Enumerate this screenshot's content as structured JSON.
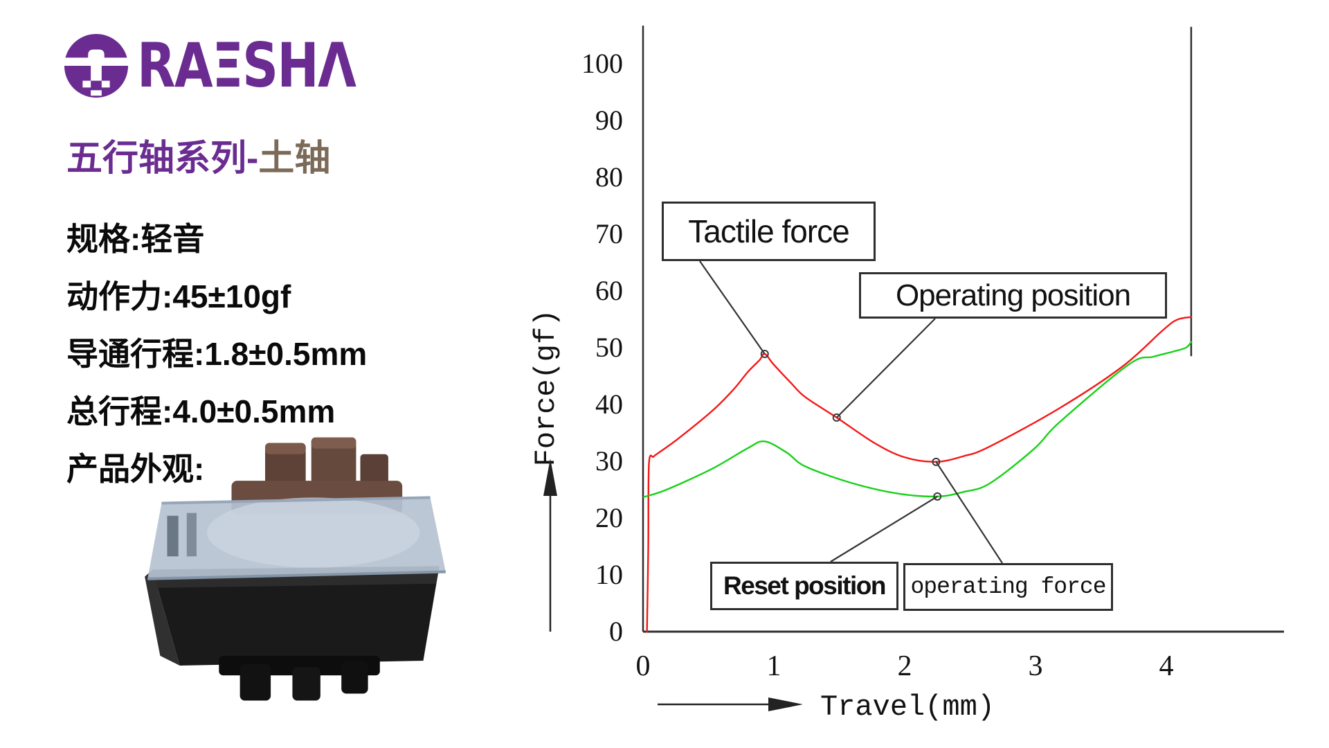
{
  "brand": {
    "logo_text": "RAESHA",
    "logo_display": "RAΞSHΛ",
    "brand_color": "#6b2c91",
    "accent_color": "#7b6a58"
  },
  "series_title": {
    "primary": "五行轴系列-",
    "accent": "土轴"
  },
  "specs": [
    "规格:轻音",
    "动作力:45±10gf",
    "导通行程:1.8±0.5mm",
    "总行程:4.0±0.5mm",
    "产品外观:"
  ],
  "chart_data": {
    "type": "line",
    "title": "",
    "xlabel": "Travel(mm)",
    "ylabel": "Force(gf)",
    "x_ticks": [
      0,
      1,
      2,
      3,
      4
    ],
    "y_ticks": [
      0,
      10,
      20,
      30,
      40,
      50,
      60,
      70,
      80,
      90,
      100
    ],
    "xlim": [
      0,
      4.9
    ],
    "ylim": [
      0,
      107
    ],
    "grid": false,
    "legend_position": "none",
    "axis_color": "#2f2f2f",
    "bottom_out_mm": 4.19,
    "bottom_out_gf_span": [
      48.5,
      106.5
    ],
    "series": [
      {
        "name": "press-force-curve",
        "color": "#f51616",
        "points": [
          [
            0.03,
            0
          ],
          [
            0.04,
            15
          ],
          [
            0.045,
            29.5
          ],
          [
            0.08,
            30.8
          ],
          [
            0.12,
            31.5
          ],
          [
            0.27,
            34.0
          ],
          [
            0.53,
            38.9
          ],
          [
            0.69,
            42.6
          ],
          [
            0.8,
            45.7
          ],
          [
            0.89,
            47.8
          ],
          [
            0.93,
            48.9
          ],
          [
            1.0,
            47.0
          ],
          [
            1.13,
            43.8
          ],
          [
            1.24,
            41.3
          ],
          [
            1.48,
            37.7
          ],
          [
            1.77,
            33.2
          ],
          [
            2.0,
            30.7
          ],
          [
            2.24,
            29.9
          ],
          [
            2.45,
            30.9
          ],
          [
            2.65,
            32.6
          ],
          [
            3.18,
            39.3
          ],
          [
            3.66,
            46.6
          ],
          [
            3.97,
            53.0
          ],
          [
            4.08,
            54.9
          ],
          [
            4.19,
            55.4
          ]
        ]
      },
      {
        "name": "release-force-curve",
        "color": "#17d117",
        "points": [
          [
            0.005,
            23.7
          ],
          [
            0.18,
            25.0
          ],
          [
            0.53,
            28.7
          ],
          [
            0.8,
            32.3
          ],
          [
            0.93,
            33.5
          ],
          [
            1.1,
            31.5
          ],
          [
            1.24,
            29.1
          ],
          [
            1.59,
            26.2
          ],
          [
            1.95,
            24.3
          ],
          [
            2.25,
            23.8
          ],
          [
            2.45,
            24.6
          ],
          [
            2.65,
            26.1
          ],
          [
            2.99,
            32.2
          ],
          [
            3.18,
            36.8
          ],
          [
            3.71,
            47.0
          ],
          [
            3.9,
            48.4
          ],
          [
            4.05,
            49.3
          ],
          [
            4.15,
            50.0
          ],
          [
            4.19,
            51.0
          ]
        ]
      }
    ],
    "annotations": [
      {
        "id": "tactile-force",
        "label": "Tactile force",
        "target_mm": 0.93,
        "target_gf": 48.9
      },
      {
        "id": "operating-position",
        "label": "Operating position",
        "target_mm": 1.48,
        "target_gf": 37.7
      },
      {
        "id": "reset-position",
        "label": "Reset position",
        "target_mm": 2.25,
        "target_gf": 23.8
      },
      {
        "id": "operating-force",
        "label": "operating force",
        "target_mm": 2.24,
        "target_gf": 29.9
      }
    ]
  }
}
